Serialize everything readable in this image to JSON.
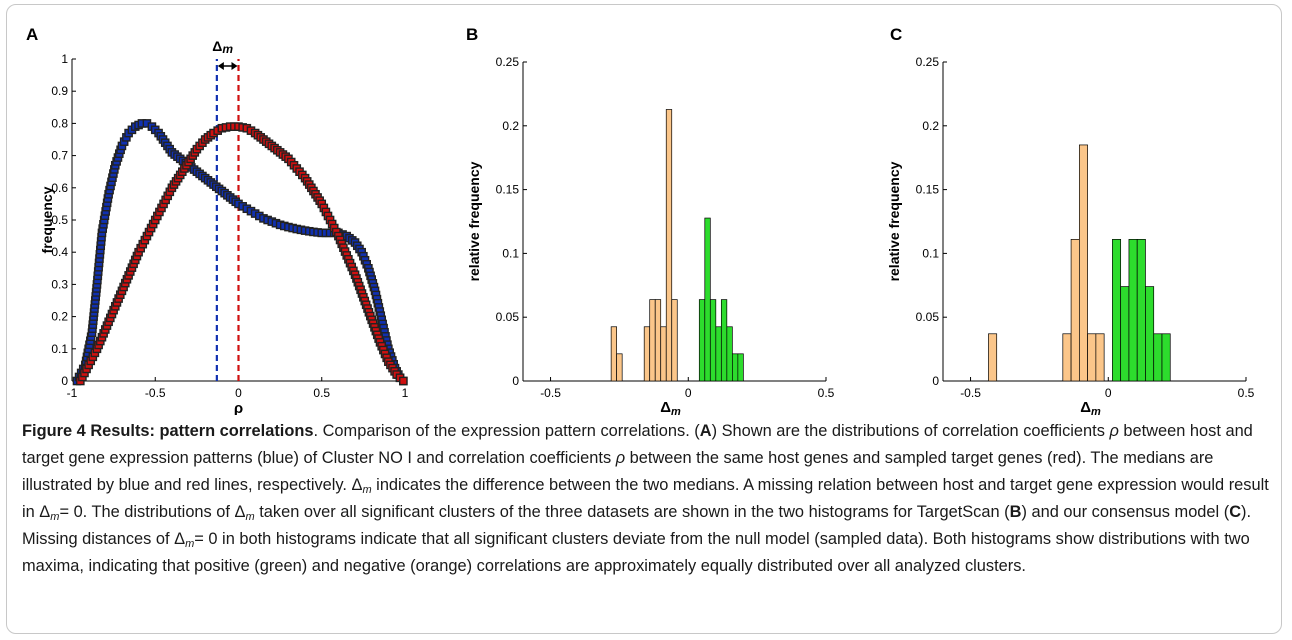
{
  "figure": {
    "label": "Figure 4",
    "title": "Results: pattern correlations",
    "caption_parts": [
      ". Comparison of the expression pattern correlations. (",
      "A",
      ") Shown are the distributions of correlation coefficients ",
      "ρ",
      " between host and target gene expression patterns (blue) of Cluster NO I and correlation coefficients ",
      "ρ",
      " between the same host genes and sampled target genes (red). The medians are illustrated by blue and red lines, respectively. Δ",
      "m",
      " indicates the difference between the two medians. A missing relation between host and target gene expression would result in Δ",
      "m",
      "= 0. The distributions of Δ",
      "m",
      " taken over all significant clusters of the three datasets are shown in the two histograms for TargetScan (",
      "B",
      ") and our consensus model (",
      "C",
      "). Missing distances of Δ",
      "m",
      "= 0 in both histograms indicate that all significant clusters deviate from the null model (sampled data). Both histograms show distributions with two maxima, indicating that positive (green) and negative (orange) correlations are approximately equally distributed over all analyzed clusters."
    ]
  },
  "colors": {
    "blue": "#1030b0",
    "red": "#d01010",
    "orange": "#fbc68a",
    "green": "#2ddc2d",
    "marker_edge": "#222222"
  },
  "chart_data": [
    {
      "panel": "A",
      "type": "scatter",
      "xlabel": "ρ",
      "ylabel": "frequency",
      "xlim": [
        -1,
        1
      ],
      "ylim": [
        0,
        1
      ],
      "xticks": [
        "-1",
        "-0.5",
        "0",
        "0.5",
        "1"
      ],
      "yticks": [
        "0",
        "0.1",
        "0.2",
        "0.3",
        "0.4",
        "0.5",
        "0.6",
        "0.7",
        "0.8",
        "0.9",
        "1"
      ],
      "annotation": "Δm",
      "median_lines": [
        {
          "color": "blue",
          "x": -0.13
        },
        {
          "color": "red",
          "x": 0.0
        }
      ],
      "series": [
        {
          "color": "blue",
          "x": [
            -0.97,
            -0.92,
            -0.88,
            -0.85,
            -0.82,
            -0.78,
            -0.74,
            -0.7,
            -0.66,
            -0.62,
            -0.58,
            -0.55,
            -0.52,
            -0.48,
            -0.44,
            -0.4,
            -0.35,
            -0.3,
            -0.25,
            -0.2,
            -0.15,
            -0.1,
            -0.05,
            0.0,
            0.05,
            0.1,
            0.15,
            0.2,
            0.25,
            0.3,
            0.35,
            0.4,
            0.45,
            0.5,
            0.55,
            0.6,
            0.65,
            0.7,
            0.74,
            0.78,
            0.82,
            0.86,
            0.9,
            0.94,
            0.97,
            0.99
          ],
          "y": [
            0.0,
            0.05,
            0.15,
            0.3,
            0.46,
            0.58,
            0.67,
            0.73,
            0.77,
            0.79,
            0.8,
            0.8,
            0.79,
            0.77,
            0.74,
            0.71,
            0.69,
            0.67,
            0.65,
            0.63,
            0.61,
            0.59,
            0.57,
            0.55,
            0.535,
            0.52,
            0.505,
            0.495,
            0.485,
            0.478,
            0.472,
            0.467,
            0.463,
            0.46,
            0.46,
            0.46,
            0.45,
            0.43,
            0.4,
            0.35,
            0.28,
            0.19,
            0.1,
            0.04,
            0.01,
            0.0
          ]
        },
        {
          "color": "red",
          "x": [
            -0.95,
            -0.9,
            -0.85,
            -0.8,
            -0.75,
            -0.7,
            -0.65,
            -0.6,
            -0.55,
            -0.5,
            -0.45,
            -0.4,
            -0.35,
            -0.3,
            -0.25,
            -0.2,
            -0.15,
            -0.1,
            -0.05,
            0.0,
            0.05,
            0.1,
            0.15,
            0.2,
            0.25,
            0.3,
            0.35,
            0.4,
            0.45,
            0.5,
            0.55,
            0.6,
            0.65,
            0.7,
            0.75,
            0.8,
            0.85,
            0.9,
            0.95,
            0.99
          ],
          "y": [
            0.0,
            0.05,
            0.1,
            0.16,
            0.22,
            0.28,
            0.34,
            0.4,
            0.45,
            0.5,
            0.55,
            0.6,
            0.64,
            0.68,
            0.72,
            0.75,
            0.77,
            0.785,
            0.79,
            0.79,
            0.785,
            0.77,
            0.75,
            0.73,
            0.71,
            0.69,
            0.66,
            0.63,
            0.59,
            0.55,
            0.5,
            0.45,
            0.39,
            0.33,
            0.26,
            0.19,
            0.12,
            0.06,
            0.02,
            0.0
          ]
        }
      ]
    },
    {
      "panel": "B",
      "type": "bar",
      "xlabel": "Δm",
      "ylabel": "relative frequency",
      "xlim": [
        -0.6,
        0.5
      ],
      "ylim": [
        0,
        0.25
      ],
      "xticks": [
        "-0.5",
        "0",
        "0.5"
      ],
      "yticks": [
        "0",
        "0.05",
        "0.1",
        "0.15",
        "0.2",
        "0.25"
      ],
      "bin_width": 0.02,
      "bars": [
        {
          "x": -0.28,
          "value": 0.0425,
          "color": "orange"
        },
        {
          "x": -0.26,
          "value": 0.0213,
          "color": "orange"
        },
        {
          "x": -0.16,
          "value": 0.0425,
          "color": "orange"
        },
        {
          "x": -0.14,
          "value": 0.0638,
          "color": "orange"
        },
        {
          "x": -0.12,
          "value": 0.0638,
          "color": "orange"
        },
        {
          "x": -0.1,
          "value": 0.0425,
          "color": "orange"
        },
        {
          "x": -0.08,
          "value": 0.2128,
          "color": "orange"
        },
        {
          "x": -0.06,
          "value": 0.0638,
          "color": "orange"
        },
        {
          "x": 0.04,
          "value": 0.0638,
          "color": "green"
        },
        {
          "x": 0.06,
          "value": 0.1277,
          "color": "green"
        },
        {
          "x": 0.08,
          "value": 0.0638,
          "color": "green"
        },
        {
          "x": 0.1,
          "value": 0.0425,
          "color": "green"
        },
        {
          "x": 0.12,
          "value": 0.0638,
          "color": "green"
        },
        {
          "x": 0.14,
          "value": 0.0425,
          "color": "green"
        },
        {
          "x": 0.16,
          "value": 0.0213,
          "color": "green"
        },
        {
          "x": 0.18,
          "value": 0.0213,
          "color": "green"
        }
      ]
    },
    {
      "panel": "C",
      "type": "bar",
      "xlabel": "Δm",
      "ylabel": "relative frequency",
      "xlim": [
        -0.6,
        0.5
      ],
      "ylim": [
        0,
        0.25
      ],
      "xticks": [
        "-0.5",
        "0",
        "0.5"
      ],
      "yticks": [
        "0",
        "0.05",
        "0.1",
        "0.15",
        "0.2",
        "0.25"
      ],
      "bin_width": 0.03,
      "bars": [
        {
          "x": -0.435,
          "value": 0.037,
          "color": "orange"
        },
        {
          "x": -0.165,
          "value": 0.037,
          "color": "orange"
        },
        {
          "x": -0.135,
          "value": 0.111,
          "color": "orange"
        },
        {
          "x": -0.105,
          "value": 0.185,
          "color": "orange"
        },
        {
          "x": -0.075,
          "value": 0.037,
          "color": "orange"
        },
        {
          "x": -0.045,
          "value": 0.037,
          "color": "orange"
        },
        {
          "x": 0.015,
          "value": 0.111,
          "color": "green"
        },
        {
          "x": 0.045,
          "value": 0.074,
          "color": "green"
        },
        {
          "x": 0.075,
          "value": 0.111,
          "color": "green"
        },
        {
          "x": 0.105,
          "value": 0.111,
          "color": "green"
        },
        {
          "x": 0.135,
          "value": 0.074,
          "color": "green"
        },
        {
          "x": 0.165,
          "value": 0.037,
          "color": "green"
        },
        {
          "x": 0.195,
          "value": 0.037,
          "color": "green"
        }
      ]
    }
  ]
}
